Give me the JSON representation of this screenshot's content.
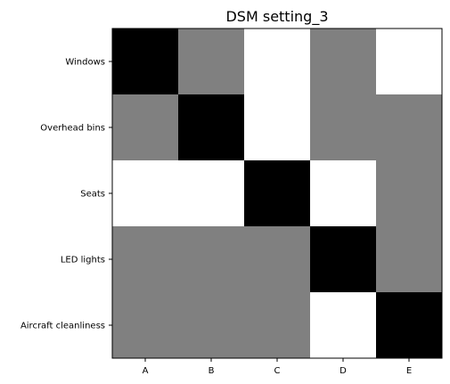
{
  "chart_data": {
    "type": "heatmap",
    "title": "DSM setting_3",
    "xlabel": "",
    "ylabel": "",
    "x_categories": [
      "A",
      "B",
      "C",
      "D",
      "E"
    ],
    "y_categories": [
      "Windows",
      "Overhead bins",
      "Seats",
      "LED lights",
      "Aircraft cleanliness"
    ],
    "values": [
      [
        1,
        0.5,
        0,
        0.5,
        0
      ],
      [
        0.5,
        1,
        0,
        0.5,
        0.5
      ],
      [
        0,
        0,
        1,
        0,
        0.5
      ],
      [
        0.5,
        0.5,
        0.5,
        1,
        0.5
      ],
      [
        0.5,
        0.5,
        0.5,
        0,
        1
      ]
    ],
    "colormap": "gray_r",
    "value_range": [
      0,
      1
    ],
    "colors": {
      "low": "#ffffff",
      "mid": "#808080",
      "high": "#000000"
    },
    "grid": false,
    "legend": "none"
  }
}
